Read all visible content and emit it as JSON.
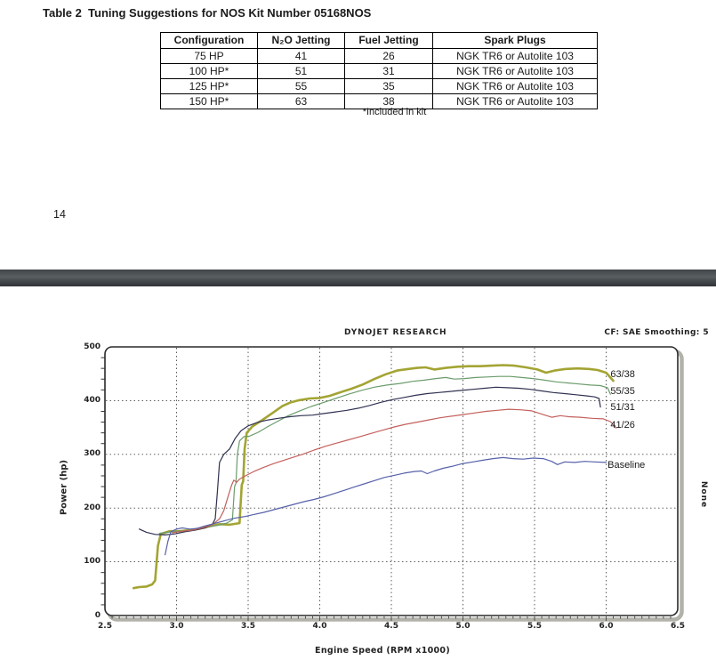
{
  "document": {
    "title": "Table 2  Tuning Suggestions for NOS Kit Number 05168NOS",
    "page_number": "14",
    "table": {
      "headers": [
        "Configuration",
        "N₂O Jetting",
        "Fuel Jetting",
        "Spark Plugs"
      ],
      "rows": [
        [
          "75 HP",
          "41",
          "26",
          "NGK TR6 or Autolite 103"
        ],
        [
          "100 HP*",
          "51",
          "31",
          "NGK TR6 or Autolite 103"
        ],
        [
          "125 HP*",
          "55",
          "35",
          "NGK TR6 or Autolite 103"
        ],
        [
          "150 HP*",
          "63",
          "38",
          "NGK TR6 or Autolite 103"
        ]
      ],
      "footnote": "*Included in kit"
    }
  },
  "chart_data": {
    "type": "line",
    "title": "DYNOJET RESEARCH",
    "corner_text": "CF: SAE  Smoothing: 5",
    "right_edge_text": "None",
    "xlabel": "Engine Speed (RPM x1000)",
    "ylabel": "Power (hp)",
    "xlim": [
      2.5,
      6.5
    ],
    "ylim": [
      0,
      500
    ],
    "x_tick_labels": [
      "2.5",
      "3.0",
      "3.5",
      "4.0",
      "4.5",
      "5.0",
      "5.5",
      "6.0",
      "6.5"
    ],
    "y_ticks": [
      0,
      100,
      200,
      300,
      400,
      500
    ],
    "grid": "dashed",
    "legend_position": "inline-right",
    "series": [
      {
        "name": "63/38",
        "color": "#a3a433",
        "width": 2.6,
        "points": [
          [
            2.7,
            51
          ],
          [
            2.74,
            53
          ],
          [
            2.79,
            54
          ],
          [
            2.83,
            58
          ],
          [
            2.85,
            65
          ],
          [
            2.87,
            130
          ],
          [
            2.89,
            152
          ],
          [
            2.95,
            157
          ],
          [
            3.02,
            157
          ],
          [
            3.09,
            159
          ],
          [
            3.16,
            162
          ],
          [
            3.23,
            166
          ],
          [
            3.3,
            170
          ],
          [
            3.37,
            169
          ],
          [
            3.44,
            172
          ],
          [
            3.455,
            243
          ],
          [
            3.465,
            250
          ],
          [
            3.475,
            310
          ],
          [
            3.49,
            340
          ],
          [
            3.53,
            352
          ],
          [
            3.6,
            364
          ],
          [
            3.67,
            377
          ],
          [
            3.74,
            390
          ],
          [
            3.8,
            397
          ],
          [
            3.86,
            401
          ],
          [
            3.93,
            404
          ],
          [
            4.0,
            405
          ],
          [
            4.07,
            409
          ],
          [
            4.15,
            416
          ],
          [
            4.22,
            422
          ],
          [
            4.3,
            430
          ],
          [
            4.38,
            440
          ],
          [
            4.46,
            449
          ],
          [
            4.54,
            456
          ],
          [
            4.62,
            459
          ],
          [
            4.68,
            461
          ],
          [
            4.74,
            462
          ],
          [
            4.8,
            458
          ],
          [
            4.88,
            461
          ],
          [
            4.96,
            463
          ],
          [
            5.04,
            464
          ],
          [
            5.12,
            464
          ],
          [
            5.2,
            465
          ],
          [
            5.28,
            466
          ],
          [
            5.36,
            465
          ],
          [
            5.44,
            462
          ],
          [
            5.52,
            458
          ],
          [
            5.58,
            452
          ],
          [
            5.64,
            456
          ],
          [
            5.72,
            459
          ],
          [
            5.8,
            460
          ],
          [
            5.88,
            459
          ],
          [
            5.94,
            457
          ],
          [
            6.0,
            452
          ],
          [
            6.05,
            437
          ]
        ]
      },
      {
        "name": "55/35",
        "color": "#6b9c6c",
        "width": 1.2,
        "points": [
          [
            2.88,
            153
          ],
          [
            2.94,
            155
          ],
          [
            3.01,
            157
          ],
          [
            3.08,
            158
          ],
          [
            3.15,
            161
          ],
          [
            3.22,
            165
          ],
          [
            3.29,
            168
          ],
          [
            3.35,
            172
          ],
          [
            3.39,
            178
          ],
          [
            3.405,
            240
          ],
          [
            3.415,
            246
          ],
          [
            3.425,
            300
          ],
          [
            3.44,
            325
          ],
          [
            3.47,
            333
          ],
          [
            3.51,
            334
          ],
          [
            3.57,
            341
          ],
          [
            3.64,
            352
          ],
          [
            3.71,
            362
          ],
          [
            3.78,
            372
          ],
          [
            3.86,
            381
          ],
          [
            3.94,
            389
          ],
          [
            4.02,
            396
          ],
          [
            4.11,
            404
          ],
          [
            4.2,
            412
          ],
          [
            4.29,
            419
          ],
          [
            4.38,
            425
          ],
          [
            4.47,
            429
          ],
          [
            4.56,
            432
          ],
          [
            4.65,
            436
          ],
          [
            4.73,
            438
          ],
          [
            4.81,
            441
          ],
          [
            4.88,
            443
          ],
          [
            4.94,
            440
          ],
          [
            5.01,
            441
          ],
          [
            5.09,
            443
          ],
          [
            5.17,
            444
          ],
          [
            5.25,
            445
          ],
          [
            5.33,
            445
          ],
          [
            5.41,
            443
          ],
          [
            5.49,
            441
          ],
          [
            5.57,
            438
          ],
          [
            5.65,
            435
          ],
          [
            5.73,
            433
          ],
          [
            5.81,
            431
          ],
          [
            5.89,
            429
          ],
          [
            5.96,
            428
          ],
          [
            6.01,
            424
          ],
          [
            6.03,
            412
          ]
        ]
      },
      {
        "name": "51/31",
        "color": "#2f3150",
        "width": 1.2,
        "points": [
          [
            2.74,
            161
          ],
          [
            2.79,
            155
          ],
          [
            2.85,
            151
          ],
          [
            2.92,
            150
          ],
          [
            2.99,
            152
          ],
          [
            3.06,
            156
          ],
          [
            3.13,
            159
          ],
          [
            3.2,
            163
          ],
          [
            3.25,
            170
          ],
          [
            3.27,
            180
          ],
          [
            3.285,
            230
          ],
          [
            3.3,
            285
          ],
          [
            3.33,
            300
          ],
          [
            3.37,
            310
          ],
          [
            3.41,
            330
          ],
          [
            3.45,
            344
          ],
          [
            3.5,
            353
          ],
          [
            3.57,
            360
          ],
          [
            3.64,
            364
          ],
          [
            3.71,
            367
          ],
          [
            3.79,
            370
          ],
          [
            3.87,
            372
          ],
          [
            3.95,
            373
          ],
          [
            4.03,
            376
          ],
          [
            4.11,
            379
          ],
          [
            4.19,
            382
          ],
          [
            4.27,
            386
          ],
          [
            4.35,
            391
          ],
          [
            4.43,
            397
          ],
          [
            4.51,
            402
          ],
          [
            4.59,
            406
          ],
          [
            4.67,
            410
          ],
          [
            4.75,
            413
          ],
          [
            4.83,
            415
          ],
          [
            4.91,
            417
          ],
          [
            4.99,
            419
          ],
          [
            5.07,
            421
          ],
          [
            5.15,
            423
          ],
          [
            5.23,
            425
          ],
          [
            5.31,
            424
          ],
          [
            5.39,
            423
          ],
          [
            5.47,
            421
          ],
          [
            5.55,
            418
          ],
          [
            5.63,
            415
          ],
          [
            5.71,
            413
          ],
          [
            5.79,
            411
          ],
          [
            5.86,
            409
          ],
          [
            5.92,
            407
          ],
          [
            5.95,
            404
          ],
          [
            5.96,
            388
          ]
        ]
      },
      {
        "name": "41/26",
        "color": "#c3605c",
        "width": 1.2,
        "points": [
          [
            2.97,
            154
          ],
          [
            3.04,
            157
          ],
          [
            3.11,
            159
          ],
          [
            3.18,
            163
          ],
          [
            3.25,
            169
          ],
          [
            3.3,
            180
          ],
          [
            3.33,
            195
          ],
          [
            3.36,
            222
          ],
          [
            3.385,
            243
          ],
          [
            3.4,
            252
          ],
          [
            3.42,
            248
          ],
          [
            3.44,
            254
          ],
          [
            3.48,
            260
          ],
          [
            3.54,
            268
          ],
          [
            3.61,
            276
          ],
          [
            3.68,
            283
          ],
          [
            3.75,
            289
          ],
          [
            3.82,
            295
          ],
          [
            3.89,
            301
          ],
          [
            3.96,
            308
          ],
          [
            4.04,
            315
          ],
          [
            4.12,
            321
          ],
          [
            4.2,
            327
          ],
          [
            4.28,
            333
          ],
          [
            4.36,
            339
          ],
          [
            4.44,
            345
          ],
          [
            4.52,
            351
          ],
          [
            4.6,
            356
          ],
          [
            4.68,
            360
          ],
          [
            4.76,
            364
          ],
          [
            4.84,
            368
          ],
          [
            4.92,
            371
          ],
          [
            5.0,
            374
          ],
          [
            5.08,
            377
          ],
          [
            5.16,
            380
          ],
          [
            5.24,
            382
          ],
          [
            5.32,
            384
          ],
          [
            5.4,
            383
          ],
          [
            5.48,
            381
          ],
          [
            5.56,
            374
          ],
          [
            5.62,
            369
          ],
          [
            5.68,
            372
          ],
          [
            5.74,
            370
          ],
          [
            5.82,
            369
          ],
          [
            5.9,
            367
          ],
          [
            5.98,
            366
          ],
          [
            6.03,
            361
          ],
          [
            6.07,
            349
          ]
        ]
      },
      {
        "name": "Baseline",
        "color": "#5661a8",
        "width": 1.2,
        "points": [
          [
            2.92,
            113
          ],
          [
            2.94,
            138
          ],
          [
            2.96,
            156
          ],
          [
            3.0,
            161
          ],
          [
            3.04,
            163
          ],
          [
            3.09,
            161
          ],
          [
            3.14,
            162
          ],
          [
            3.19,
            166
          ],
          [
            3.26,
            171
          ],
          [
            3.33,
            176
          ],
          [
            3.4,
            181
          ],
          [
            3.47,
            184
          ],
          [
            3.54,
            188
          ],
          [
            3.61,
            192
          ],
          [
            3.68,
            197
          ],
          [
            3.75,
            202
          ],
          [
            3.82,
            207
          ],
          [
            3.89,
            212
          ],
          [
            3.96,
            216
          ],
          [
            4.03,
            221
          ],
          [
            4.1,
            227
          ],
          [
            4.17,
            233
          ],
          [
            4.24,
            239
          ],
          [
            4.31,
            245
          ],
          [
            4.38,
            251
          ],
          [
            4.45,
            257
          ],
          [
            4.52,
            261
          ],
          [
            4.59,
            265
          ],
          [
            4.66,
            268
          ],
          [
            4.71,
            269
          ],
          [
            4.75,
            264
          ],
          [
            4.8,
            269
          ],
          [
            4.86,
            274
          ],
          [
            4.93,
            278
          ],
          [
            5.0,
            283
          ],
          [
            5.07,
            286
          ],
          [
            5.14,
            289
          ],
          [
            5.21,
            292
          ],
          [
            5.28,
            294
          ],
          [
            5.35,
            292
          ],
          [
            5.42,
            291
          ],
          [
            5.49,
            293
          ],
          [
            5.56,
            292
          ],
          [
            5.62,
            287
          ],
          [
            5.66,
            281
          ],
          [
            5.71,
            286
          ],
          [
            5.78,
            285
          ],
          [
            5.85,
            287
          ],
          [
            5.92,
            286
          ],
          [
            6.0,
            285
          ]
        ]
      }
    ],
    "series_labels": [
      {
        "text": "63/38",
        "x_rpm": 6.03,
        "y_hp": 449
      },
      {
        "text": "55/35",
        "x_rpm": 6.03,
        "y_hp": 417
      },
      {
        "text": "51/31",
        "x_rpm": 6.03,
        "y_hp": 387
      },
      {
        "text": "41/26",
        "x_rpm": 6.03,
        "y_hp": 354
      },
      {
        "text": "Baseline",
        "x_rpm": 6.01,
        "y_hp": 280
      }
    ]
  }
}
